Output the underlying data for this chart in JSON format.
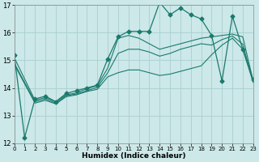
{
  "xlabel": "Humidex (Indice chaleur)",
  "xlim": [
    0,
    23
  ],
  "ylim": [
    12,
    17
  ],
  "yticks": [
    12,
    13,
    14,
    15,
    16,
    17
  ],
  "xticks": [
    0,
    1,
    2,
    3,
    4,
    5,
    6,
    7,
    8,
    9,
    10,
    11,
    12,
    13,
    14,
    15,
    16,
    17,
    18,
    19,
    20,
    21,
    22,
    23
  ],
  "bg_color": "#cce8e8",
  "grid_color": "#aacece",
  "line_color": "#1a7a6e",
  "series": [
    {
      "x": [
        0,
        1,
        2,
        3,
        4,
        5,
        6,
        7,
        8,
        9,
        10,
        11,
        12,
        13,
        14,
        15,
        16,
        17,
        18,
        19,
        20,
        21,
        22,
        23
      ],
      "y": [
        15.2,
        12.2,
        13.6,
        13.7,
        13.5,
        13.8,
        13.9,
        14.0,
        14.1,
        15.05,
        15.85,
        16.05,
        16.05,
        16.05,
        17.1,
        16.65,
        16.9,
        16.65,
        16.5,
        15.9,
        14.25,
        16.6,
        15.4,
        14.3
      ],
      "marker": "D",
      "ms": 2.5,
      "lw": 0.9,
      "ls": "-"
    },
    {
      "x": [
        0,
        2,
        3,
        4,
        5,
        6,
        7,
        8,
        9,
        10,
        11,
        12,
        13,
        14,
        15,
        16,
        17,
        18,
        19,
        20,
        21,
        22,
        23
      ],
      "y": [
        15.1,
        13.55,
        13.65,
        13.5,
        13.75,
        13.82,
        13.97,
        14.08,
        14.72,
        15.8,
        15.9,
        15.8,
        15.6,
        15.4,
        15.5,
        15.6,
        15.7,
        15.8,
        15.85,
        15.9,
        15.95,
        15.85,
        14.25
      ],
      "marker": null,
      "ms": 0,
      "lw": 0.8,
      "ls": "-"
    },
    {
      "x": [
        0,
        2,
        3,
        4,
        5,
        6,
        7,
        8,
        9,
        10,
        11,
        12,
        13,
        14,
        15,
        16,
        17,
        18,
        19,
        20,
        21,
        22,
        23
      ],
      "y": [
        14.9,
        13.5,
        13.6,
        13.45,
        13.72,
        13.78,
        13.9,
        14.02,
        14.55,
        15.25,
        15.4,
        15.4,
        15.3,
        15.15,
        15.25,
        15.4,
        15.5,
        15.6,
        15.55,
        15.75,
        15.88,
        15.58,
        14.22
      ],
      "marker": null,
      "ms": 0,
      "lw": 0.8,
      "ls": "-"
    },
    {
      "x": [
        0,
        2,
        3,
        4,
        5,
        6,
        7,
        8,
        9,
        10,
        11,
        12,
        13,
        14,
        15,
        16,
        17,
        18,
        19,
        20,
        21,
        22,
        23
      ],
      "y": [
        14.85,
        13.45,
        13.55,
        13.42,
        13.68,
        13.75,
        13.87,
        13.95,
        14.4,
        14.55,
        14.65,
        14.65,
        14.55,
        14.45,
        14.5,
        14.6,
        14.7,
        14.8,
        15.2,
        15.55,
        15.8,
        15.4,
        14.2
      ],
      "marker": null,
      "ms": 0,
      "lw": 0.8,
      "ls": "-"
    }
  ]
}
